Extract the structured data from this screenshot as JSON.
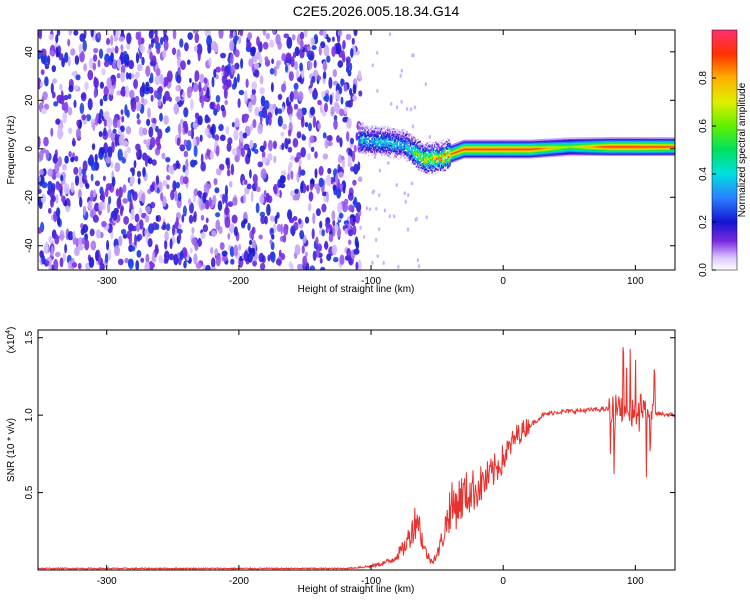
{
  "title": "C2E5.2026.005.18.34.G14",
  "chart_data": [
    {
      "type": "heatmap",
      "title": "C2E5.2026.005.18.34.G14",
      "xlabel": "Height of straight line (km)",
      "ylabel": "Frequency (Hz)",
      "xlim": [
        -352,
        130
      ],
      "ylim": [
        -50,
        49
      ],
      "xticks": [
        -300,
        -200,
        -100,
        0,
        100
      ],
      "yticks": [
        -40,
        -20,
        0,
        20,
        40
      ],
      "colorbar": {
        "label": "Normalized spectral amplitude",
        "range": [
          0.0,
          1.0
        ],
        "ticks": [
          0.0,
          0.2,
          0.4,
          0.6,
          0.8
        ],
        "tick_labels": [
          "0.0",
          "0.2",
          "0.4",
          "0.6",
          "0.8"
        ]
      },
      "noise_region": {
        "x": [
          -352,
          -108
        ],
        "level": [
          0.05,
          0.25
        ]
      },
      "signal_band": {
        "x": [
          -110,
          -90,
          -75,
          -60,
          -45,
          -30,
          -20,
          0,
          20,
          50,
          80,
          100,
          130
        ],
        "center_hz": [
          4,
          3,
          2,
          -4,
          -3,
          0,
          0,
          0,
          0,
          1,
          1,
          1,
          1
        ],
        "peak_amplitude": [
          0.4,
          0.45,
          0.45,
          0.7,
          0.85,
          0.95,
          0.95,
          0.95,
          0.95,
          0.65,
          0.95,
          0.95,
          0.9
        ]
      }
    },
    {
      "type": "line",
      "xlabel": "Height of straight line (km)",
      "ylabel": "SNR (10 * v/v)",
      "y_multiplier_prefix": "(x10",
      "y_multiplier_exp": "4",
      "y_multiplier_suffix": ")",
      "xlim": [
        -352,
        130
      ],
      "ylim": [
        0,
        1.55
      ],
      "xticks": [
        -300,
        -200,
        -100,
        0,
        100
      ],
      "yticks": [
        0.5,
        1.0,
        1.5
      ],
      "ytick_labels": [
        "0.5",
        "1.0",
        "1.5"
      ],
      "series": [
        {
          "name": "SNR",
          "color": "#e8322e",
          "x": [
            -352,
            -120,
            -100,
            -85,
            -75,
            -70,
            -65,
            -60,
            -55,
            -50,
            -45,
            -40,
            -30,
            -20,
            -10,
            0,
            10,
            20,
            30,
            40,
            60,
            80,
            90,
            95,
            100,
            105,
            110,
            115,
            130
          ],
          "y": [
            0.01,
            0.01,
            0.02,
            0.05,
            0.12,
            0.2,
            0.3,
            0.12,
            0.05,
            0.08,
            0.2,
            0.35,
            0.45,
            0.5,
            0.58,
            0.7,
            0.85,
            0.93,
            1.0,
            1.02,
            1.03,
            1.04,
            1.03,
            1.0,
            1.02,
            1.05,
            1.0,
            1.01,
            1.0
          ]
        }
      ]
    }
  ]
}
